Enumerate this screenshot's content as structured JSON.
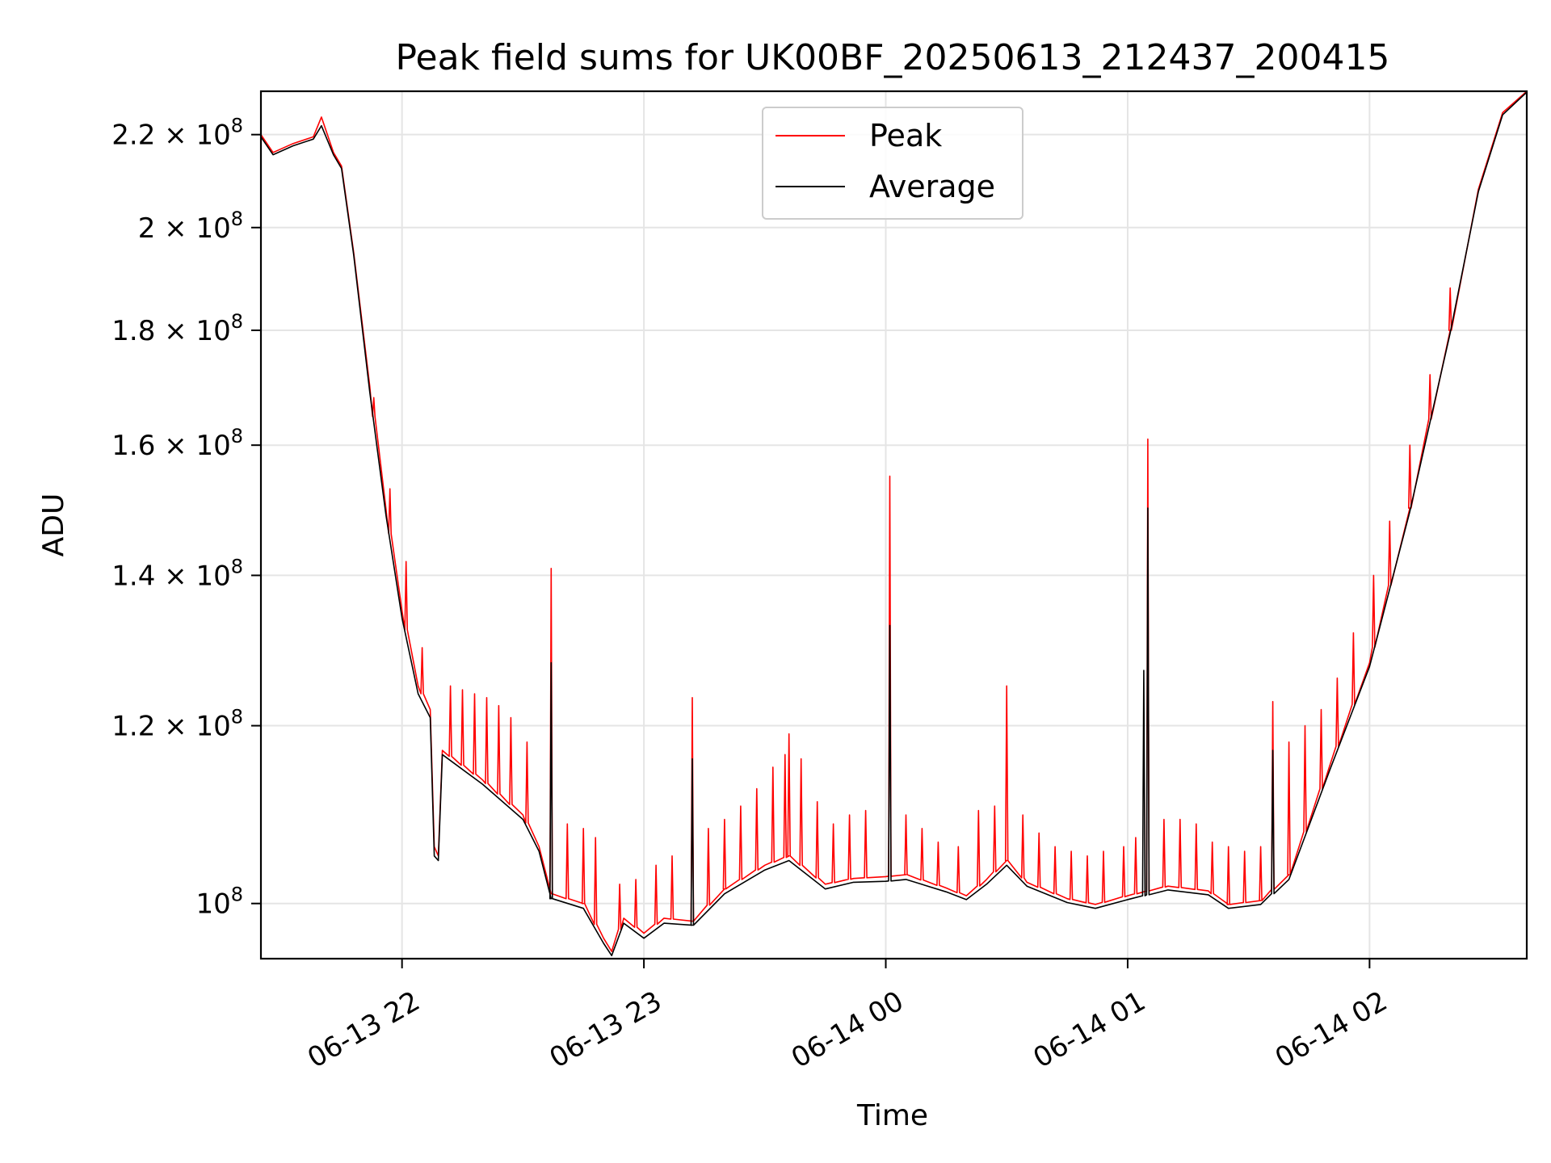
{
  "chart_data": {
    "type": "line",
    "title": "Peak field sums for UK00BF_20250613_212437_200415",
    "xlabel": "Time",
    "ylabel": "ADU",
    "yscale": "log",
    "xlim": [
      "2025-06-13 21:25",
      "2025-06-14 02:39"
    ],
    "ylim": [
      94500000,
      230000000
    ],
    "grid": true,
    "legend_position": "top-center",
    "x_ticks": [
      {
        "value": "2025-06-13 22:00",
        "label": "06-13 22"
      },
      {
        "value": "2025-06-13 23:00",
        "label": "06-13 23"
      },
      {
        "value": "2025-06-14 00:00",
        "label": "06-14 00"
      },
      {
        "value": "2025-06-14 01:00",
        "label": "06-14 01"
      },
      {
        "value": "2025-06-14 02:00",
        "label": "06-14 02"
      }
    ],
    "y_ticks": [
      {
        "value": 100000000,
        "mantissa": "",
        "exponent": "8"
      },
      {
        "value": 120000000,
        "mantissa": "1.2",
        "exponent": "8"
      },
      {
        "value": 140000000,
        "mantissa": "1.4",
        "exponent": "8"
      },
      {
        "value": 160000000,
        "mantissa": "1.6",
        "exponent": "8"
      },
      {
        "value": 180000000,
        "mantissa": "1.8",
        "exponent": "8"
      },
      {
        "value": 200000000,
        "mantissa": "2",
        "exponent": "8"
      },
      {
        "value": 220000000,
        "mantissa": "2.2",
        "exponent": "8"
      }
    ],
    "series": [
      {
        "name": "Peak",
        "color": "#ff0000",
        "baseline": [
          [
            "2025-06-13 21:25",
            220000000
          ],
          [
            "2025-06-13 21:28",
            216000000
          ],
          [
            "2025-06-13 21:33",
            218000000
          ],
          [
            "2025-06-13 21:38",
            219500000
          ],
          [
            "2025-06-13 21:40",
            224000000
          ],
          [
            "2025-06-13 21:43",
            216000000
          ],
          [
            "2025-06-13 21:45",
            213000000
          ],
          [
            "2025-06-13 21:48",
            195000000
          ],
          [
            "2025-06-13 21:52",
            170000000
          ],
          [
            "2025-06-13 21:56",
            150000000
          ],
          [
            "2025-06-13 22:00",
            135000000
          ],
          [
            "2025-06-13 22:04",
            125000000
          ],
          [
            "2025-06-13 22:07",
            122000000
          ],
          [
            "2025-06-13 22:08",
            106000000
          ],
          [
            "2025-06-13 22:09",
            105000000
          ],
          [
            "2025-06-13 22:10",
            117000000
          ],
          [
            "2025-06-13 22:20",
            113500000
          ],
          [
            "2025-06-13 22:30",
            109500000
          ],
          [
            "2025-06-13 22:34",
            106000000
          ],
          [
            "2025-06-13 22:37",
            101000000
          ],
          [
            "2025-06-13 22:45",
            100000000
          ],
          [
            "2025-06-13 22:50",
            96500000
          ],
          [
            "2025-06-13 22:52",
            95200000
          ],
          [
            "2025-06-13 22:55",
            98500000
          ],
          [
            "2025-06-13 23:00",
            97000000
          ],
          [
            "2025-06-13 23:05",
            98500000
          ],
          [
            "2025-06-13 23:12",
            98200000
          ],
          [
            "2025-06-13 23:20",
            101500000
          ],
          [
            "2025-06-13 23:30",
            104000000
          ],
          [
            "2025-06-13 23:36",
            105000000
          ],
          [
            "2025-06-13 23:45",
            102000000
          ],
          [
            "2025-06-13 23:52",
            102600000
          ],
          [
            "2025-06-14 00:00",
            102800000
          ],
          [
            "2025-06-14 00:05",
            103000000
          ],
          [
            "2025-06-14 00:15",
            101600000
          ],
          [
            "2025-06-14 00:20",
            100800000
          ],
          [
            "2025-06-14 00:25",
            102500000
          ],
          [
            "2025-06-14 00:30",
            104500000
          ],
          [
            "2025-06-14 00:35",
            102200000
          ],
          [
            "2025-06-14 00:45",
            100500000
          ],
          [
            "2025-06-14 00:52",
            99900000
          ],
          [
            "2025-06-14 01:00",
            100800000
          ],
          [
            "2025-06-14 01:10",
            101800000
          ],
          [
            "2025-06-14 01:20",
            101300000
          ],
          [
            "2025-06-14 01:25",
            99900000
          ],
          [
            "2025-06-14 01:33",
            100300000
          ],
          [
            "2025-06-14 01:40",
            103000000
          ],
          [
            "2025-06-14 01:50",
            115000000
          ],
          [
            "2025-06-14 02:00",
            128000000
          ],
          [
            "2025-06-14 02:10",
            150000000
          ],
          [
            "2025-06-14 02:20",
            180000000
          ],
          [
            "2025-06-14 02:27",
            208000000
          ],
          [
            "2025-06-14 02:33",
            225000000
          ],
          [
            "2025-06-14 02:39",
            230000000
          ]
        ],
        "spikes": [
          [
            "2025-06-13 21:53",
            168000000
          ],
          [
            "2025-06-13 21:57",
            153000000
          ],
          [
            "2025-06-13 22:01",
            142000000
          ],
          [
            "2025-06-13 22:05",
            130000000
          ],
          [
            "2025-06-13 22:12",
            125000000
          ],
          [
            "2025-06-13 22:15",
            124500000
          ],
          [
            "2025-06-13 22:18",
            124000000
          ],
          [
            "2025-06-13 22:21",
            123500000
          ],
          [
            "2025-06-13 22:24",
            122500000
          ],
          [
            "2025-06-13 22:27",
            121000000
          ],
          [
            "2025-06-13 22:31",
            118000000
          ],
          [
            "2025-06-13 22:37",
            141000000
          ],
          [
            "2025-06-13 22:41",
            108500000
          ],
          [
            "2025-06-13 22:45",
            108000000
          ],
          [
            "2025-06-13 22:48",
            107000000
          ],
          [
            "2025-06-13 22:54",
            102000000
          ],
          [
            "2025-06-13 22:58",
            102500000
          ],
          [
            "2025-06-13 23:03",
            104000000
          ],
          [
            "2025-06-13 23:07",
            105000000
          ],
          [
            "2025-06-13 23:12",
            123500000
          ],
          [
            "2025-06-13 23:16",
            108000000
          ],
          [
            "2025-06-13 23:20",
            109000000
          ],
          [
            "2025-06-13 23:24",
            110500000
          ],
          [
            "2025-06-13 23:28",
            112500000
          ],
          [
            "2025-06-13 23:32",
            115000000
          ],
          [
            "2025-06-13 23:35",
            116500000
          ],
          [
            "2025-06-13 23:36",
            119000000
          ],
          [
            "2025-06-13 23:39",
            116000000
          ],
          [
            "2025-06-13 23:43",
            111000000
          ],
          [
            "2025-06-13 23:47",
            108500000
          ],
          [
            "2025-06-13 23:51",
            109500000
          ],
          [
            "2025-06-13 23:55",
            110000000
          ],
          [
            "2025-06-14 00:01",
            155000000
          ],
          [
            "2025-06-14 00:05",
            109500000
          ],
          [
            "2025-06-14 00:09",
            108000000
          ],
          [
            "2025-06-14 00:13",
            106500000
          ],
          [
            "2025-06-14 00:18",
            106000000
          ],
          [
            "2025-06-14 00:23",
            110000000
          ],
          [
            "2025-06-14 00:27",
            110500000
          ],
          [
            "2025-06-14 00:30",
            125000000
          ],
          [
            "2025-06-14 00:34",
            109500000
          ],
          [
            "2025-06-14 00:38",
            107500000
          ],
          [
            "2025-06-14 00:42",
            106000000
          ],
          [
            "2025-06-14 00:46",
            105500000
          ],
          [
            "2025-06-14 00:50",
            105000000
          ],
          [
            "2025-06-14 00:54",
            105500000
          ],
          [
            "2025-06-14 00:59",
            106000000
          ],
          [
            "2025-06-14 01:02",
            107000000
          ],
          [
            "2025-06-14 01:05",
            161000000
          ],
          [
            "2025-06-14 01:09",
            109000000
          ],
          [
            "2025-06-14 01:13",
            109000000
          ],
          [
            "2025-06-14 01:17",
            108500000
          ],
          [
            "2025-06-14 01:21",
            106500000
          ],
          [
            "2025-06-14 01:25",
            106000000
          ],
          [
            "2025-06-14 01:29",
            105500000
          ],
          [
            "2025-06-14 01:33",
            106000000
          ],
          [
            "2025-06-14 01:36",
            123000000
          ],
          [
            "2025-06-14 01:40",
            118000000
          ],
          [
            "2025-06-14 01:44",
            120000000
          ],
          [
            "2025-06-14 01:48",
            122000000
          ],
          [
            "2025-06-14 01:52",
            126000000
          ],
          [
            "2025-06-14 01:56",
            132000000
          ],
          [
            "2025-06-14 02:01",
            140000000
          ],
          [
            "2025-06-14 02:05",
            148000000
          ],
          [
            "2025-06-14 02:10",
            160000000
          ],
          [
            "2025-06-14 02:15",
            172000000
          ],
          [
            "2025-06-14 02:20",
            188000000
          ]
        ]
      },
      {
        "name": "Average",
        "color": "#000000",
        "baseline": [
          [
            "2025-06-13 21:25",
            219500000
          ],
          [
            "2025-06-13 21:28",
            215500000
          ],
          [
            "2025-06-13 21:33",
            217500000
          ],
          [
            "2025-06-13 21:38",
            219000000
          ],
          [
            "2025-06-13 21:40",
            222000000
          ],
          [
            "2025-06-13 21:43",
            215500000
          ],
          [
            "2025-06-13 21:45",
            212500000
          ],
          [
            "2025-06-13 21:48",
            194500000
          ],
          [
            "2025-06-13 21:52",
            169000000
          ],
          [
            "2025-06-13 21:56",
            149000000
          ],
          [
            "2025-06-13 22:00",
            134000000
          ],
          [
            "2025-06-13 22:04",
            124000000
          ],
          [
            "2025-06-13 22:07",
            121000000
          ],
          [
            "2025-06-13 22:08",
            105000000
          ],
          [
            "2025-06-13 22:09",
            104500000
          ],
          [
            "2025-06-13 22:10",
            116500000
          ],
          [
            "2025-06-13 22:20",
            113000000
          ],
          [
            "2025-06-13 22:30",
            109000000
          ],
          [
            "2025-06-13 22:34",
            105500000
          ],
          [
            "2025-06-13 22:37",
            100500000
          ],
          [
            "2025-06-13 22:45",
            99500000
          ],
          [
            "2025-06-13 22:50",
            96000000
          ],
          [
            "2025-06-13 22:52",
            94800000
          ],
          [
            "2025-06-13 22:55",
            98000000
          ],
          [
            "2025-06-13 23:00",
            96500000
          ],
          [
            "2025-06-13 23:05",
            98000000
          ],
          [
            "2025-06-13 23:12",
            97800000
          ],
          [
            "2025-06-13 23:20",
            101000000
          ],
          [
            "2025-06-13 23:30",
            103500000
          ],
          [
            "2025-06-13 23:36",
            104500000
          ],
          [
            "2025-06-13 23:45",
            101500000
          ],
          [
            "2025-06-13 23:52",
            102200000
          ],
          [
            "2025-06-14 00:00",
            102300000
          ],
          [
            "2025-06-14 00:05",
            102500000
          ],
          [
            "2025-06-14 00:15",
            101200000
          ],
          [
            "2025-06-14 00:20",
            100400000
          ],
          [
            "2025-06-14 00:25",
            102000000
          ],
          [
            "2025-06-14 00:30",
            104000000
          ],
          [
            "2025-06-14 00:35",
            101800000
          ],
          [
            "2025-06-14 00:45",
            100100000
          ],
          [
            "2025-06-14 00:52",
            99500000
          ],
          [
            "2025-06-14 01:00",
            100400000
          ],
          [
            "2025-06-14 01:10",
            101400000
          ],
          [
            "2025-06-14 01:20",
            100900000
          ],
          [
            "2025-06-14 01:25",
            99500000
          ],
          [
            "2025-06-14 01:33",
            99900000
          ],
          [
            "2025-06-14 01:40",
            102500000
          ],
          [
            "2025-06-14 01:50",
            114500000
          ],
          [
            "2025-06-14 02:00",
            127500000
          ],
          [
            "2025-06-14 02:10",
            149500000
          ],
          [
            "2025-06-14 02:20",
            179500000
          ],
          [
            "2025-06-14 02:27",
            207500000
          ],
          [
            "2025-06-14 02:33",
            224500000
          ],
          [
            "2025-06-14 02:39",
            229800000
          ]
        ],
        "spikes": [
          [
            "2025-06-13 22:37",
            128000000
          ],
          [
            "2025-06-13 23:12",
            116000000
          ],
          [
            "2025-06-14 00:01",
            133000000
          ],
          [
            "2025-06-14 01:04",
            127000000
          ],
          [
            "2025-06-14 01:05",
            150000000
          ],
          [
            "2025-06-14 01:36",
            117000000
          ]
        ]
      }
    ]
  }
}
